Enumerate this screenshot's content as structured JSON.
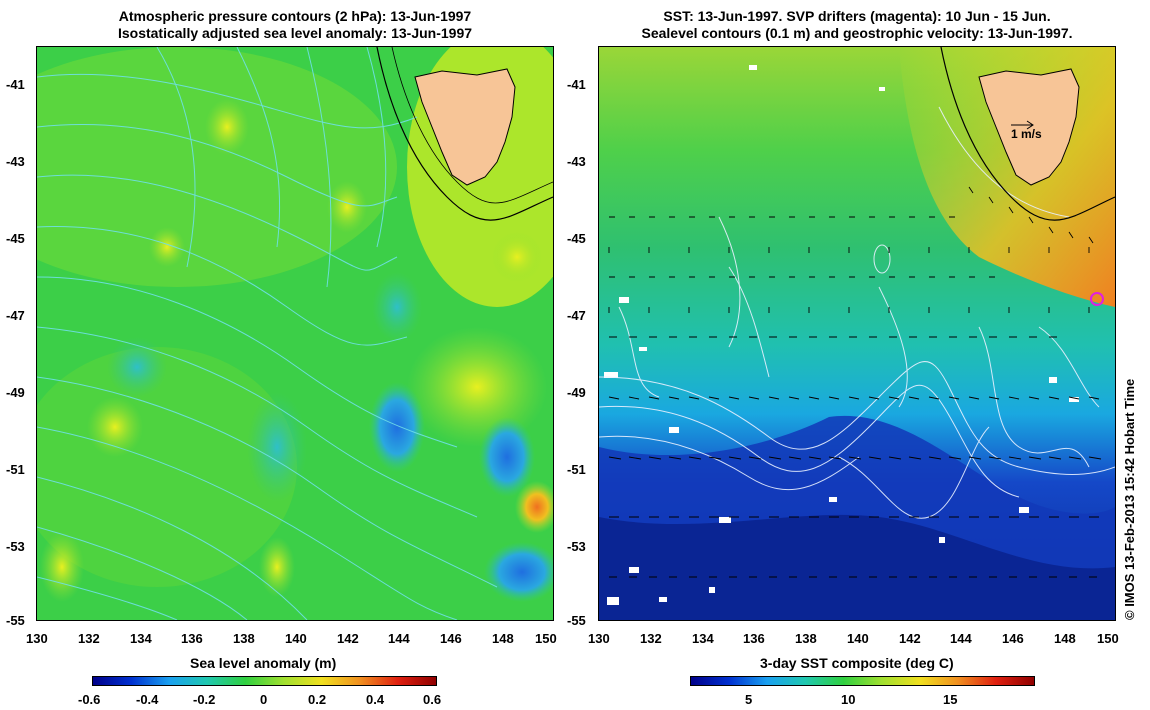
{
  "left_panel": {
    "title_line1": "Atmospheric pressure contours (2 hPa): 13-Jun-1997",
    "title_line2": "Isostatically adjusted sea level anomaly: 13-Jun-1997",
    "colorbar_title": "Sea level anomaly (m)",
    "colorbar_ticks": [
      "-0.6",
      "-0.4",
      "-0.2",
      "0",
      "0.2",
      "0.4",
      "0.6"
    ]
  },
  "right_panel": {
    "title_line1": "SST: 13-Jun-1997. SVP drifters (magenta): 10 Jun - 15 Jun.",
    "title_line2": "Sealevel contours (0.1 m) and geostrophic velocity: 13-Jun-1997.",
    "colorbar_title": "3-day SST composite (deg C)",
    "colorbar_ticks": [
      "5",
      "10",
      "15"
    ],
    "velocity_scale_label": "1 m/s"
  },
  "axes": {
    "lat_ticks": [
      "-41",
      "-43",
      "-45",
      "-47",
      "-49",
      "-51",
      "-53",
      "-55"
    ],
    "lon_ticks": [
      "130",
      "132",
      "134",
      "136",
      "138",
      "140",
      "142",
      "144",
      "146",
      "148",
      "150"
    ]
  },
  "credit": "© IMOS 13-Feb-2013 15:42 Hobart Time",
  "colors": {
    "land": "#f7c597",
    "left_background": "#3fd23c",
    "right_background_north": "#7fd23a",
    "right_background_south": "#0a3aa8"
  }
}
